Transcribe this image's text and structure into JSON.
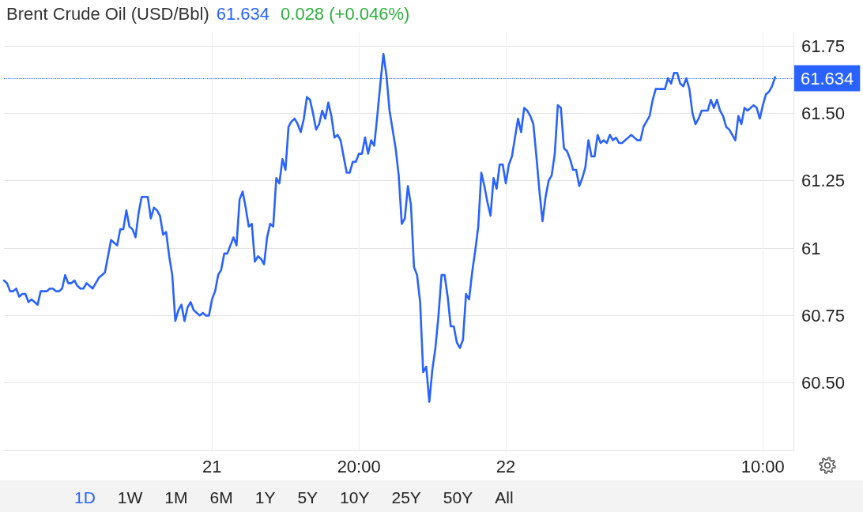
{
  "chart_data": {
    "type": "line",
    "title": "Brent Crude Oil (USD/Bbl)",
    "annotations": [
      "61.634",
      "0.028 (+0.046%)",
      "1D",
      "1W",
      "1M",
      "6M",
      "1Y",
      "5Y",
      "10Y",
      "25Y",
      "50Y",
      "All"
    ],
    "categories": [
      null,
      null,
      null,
      null,
      null,
      null,
      null,
      null,
      null,
      null,
      null,
      null,
      null,
      null,
      null,
      null,
      null,
      null,
      null,
      null,
      null,
      null,
      null,
      null,
      null,
      null,
      null,
      null,
      null,
      null,
      null,
      null,
      null,
      null,
      null,
      null,
      null,
      null,
      null,
      null,
      null,
      null,
      null,
      null,
      null,
      null,
      null,
      null,
      null,
      null,
      null,
      null,
      null,
      null,
      null,
      null,
      null,
      null,
      null,
      null,
      null,
      null,
      null,
      null,
      null,
      null,
      null,
      null,
      "21",
      null,
      null,
      null,
      null,
      null,
      null,
      null,
      null,
      null,
      null,
      null,
      null,
      null,
      null,
      null,
      null,
      null,
      null,
      null,
      null,
      null,
      null,
      null,
      null,
      null,
      null,
      null,
      null,
      null,
      null,
      null,
      null,
      null,
      null,
      null,
      null,
      null,
      null,
      null,
      null,
      null,
      null,
      null,
      null,
      null,
      null,
      null,
      "20:00",
      null,
      null,
      null,
      null,
      null,
      null,
      null,
      null,
      null,
      null,
      null,
      null,
      null,
      null,
      null,
      null,
      null,
      null,
      null,
      null,
      null,
      null,
      null,
      null,
      null,
      null,
      null,
      null,
      null,
      null,
      null,
      null,
      null,
      null,
      null,
      null,
      null,
      null,
      null,
      null,
      null,
      null,
      null,
      null,
      null,
      null,
      null,
      "22",
      null,
      null,
      null,
      null,
      null,
      null,
      null,
      null,
      null,
      null,
      null,
      null,
      null,
      null,
      null,
      null,
      null,
      null,
      null,
      null,
      null,
      null,
      null,
      null,
      null,
      null,
      null,
      null,
      null,
      null,
      null,
      null,
      null,
      null,
      null,
      null,
      null,
      null,
      null,
      null,
      null,
      null,
      null,
      null,
      null,
      null,
      null,
      null,
      null,
      null,
      null,
      null,
      null,
      null,
      null,
      null,
      null,
      null,
      null,
      null,
      null,
      null,
      null,
      null,
      null,
      null,
      null,
      null,
      null,
      null,
      null,
      null,
      null,
      null,
      null,
      null,
      null,
      null,
      null,
      null,
      null,
      null,
      null,
      "10:00",
      null,
      null,
      null,
      null,
      null,
      null,
      null,
      null,
      null,
      null
    ],
    "series": [
      {
        "color": "#2962ff",
        "values": [
          60.88,
          60.87,
          60.84,
          60.84,
          60.85,
          60.82,
          60.83,
          60.83,
          60.8,
          60.81,
          60.8,
          60.79,
          60.84,
          60.84,
          60.84,
          60.85,
          60.85,
          60.84,
          60.84,
          60.85,
          60.9,
          60.87,
          60.87,
          60.88,
          60.86,
          60.85,
          60.85,
          60.87,
          60.86,
          60.85,
          60.87,
          60.89,
          60.9,
          60.91,
          60.97,
          61.03,
          61.02,
          61.01,
          61.07,
          61.07,
          61.14,
          61.08,
          61.07,
          61.04,
          61.13,
          61.19,
          61.19,
          61.19,
          61.11,
          61.15,
          61.14,
          61.12,
          61.05,
          61.06,
          60.97,
          60.9,
          60.73,
          60.77,
          60.79,
          60.73,
          60.78,
          60.8,
          60.77,
          60.76,
          60.75,
          60.76,
          60.75,
          60.75,
          60.81,
          60.84,
          60.9,
          60.92,
          60.98,
          60.98,
          61.01,
          61.04,
          61.01,
          61.18,
          61.21,
          61.15,
          61.08,
          61.09,
          60.95,
          60.97,
          60.96,
          60.94,
          61.04,
          61.09,
          61.08,
          61.26,
          61.24,
          61.33,
          61.29,
          61.45,
          61.47,
          61.48,
          61.46,
          61.43,
          61.48,
          61.56,
          61.55,
          61.5,
          61.44,
          61.46,
          61.51,
          61.48,
          61.54,
          61.49,
          61.41,
          61.42,
          61.4,
          61.34,
          61.28,
          61.28,
          61.32,
          61.32,
          61.35,
          61.35,
          61.41,
          61.35,
          61.4,
          61.38,
          61.49,
          61.61,
          61.72,
          61.64,
          61.51,
          61.44,
          61.37,
          61.27,
          61.09,
          61.11,
          61.23,
          61.16,
          60.93,
          60.9,
          60.8,
          60.54,
          60.56,
          60.43,
          60.55,
          60.63,
          60.75,
          60.9,
          60.9,
          60.82,
          60.71,
          60.71,
          60.65,
          60.63,
          60.66,
          60.83,
          60.81,
          60.91,
          60.99,
          61.08,
          61.28,
          61.23,
          61.17,
          61.12,
          61.26,
          61.22,
          61.31,
          61.31,
          61.24,
          61.31,
          61.34,
          61.41,
          61.48,
          61.43,
          61.52,
          61.51,
          61.49,
          61.46,
          61.34,
          61.21,
          61.1,
          61.19,
          61.25,
          61.27,
          61.35,
          61.53,
          61.52,
          61.37,
          61.36,
          61.33,
          61.29,
          61.29,
          61.23,
          61.26,
          61.3,
          61.4,
          61.34,
          61.34,
          61.42,
          61.39,
          61.4,
          61.39,
          61.42,
          61.4,
          61.41,
          61.39,
          61.39,
          61.4,
          61.41,
          61.42,
          61.41,
          61.4,
          61.4,
          61.45,
          61.47,
          61.49,
          61.55,
          61.59,
          61.59,
          61.59,
          61.59,
          61.63,
          61.61,
          61.65,
          61.65,
          61.61,
          61.6,
          61.63,
          61.59,
          61.5,
          61.46,
          61.48,
          61.51,
          61.51,
          61.51,
          61.55,
          61.52,
          61.55,
          61.51,
          61.49,
          61.45,
          61.44,
          61.42,
          61.4,
          61.49,
          61.46,
          61.52,
          61.51,
          61.52,
          61.53,
          61.52,
          61.48,
          61.53,
          61.57,
          61.58,
          61.6,
          61.634,
          null,
          null,
          null,
          null,
          null,
          null
        ]
      }
    ],
    "ylim": [
      60.25,
      61.8
    ],
    "yticks": [
      {
        "value": 60.5,
        "label": "60.50"
      },
      60.75,
      61,
      61.25,
      {
        "value": 61.5,
        "label": "61.50"
      },
      61.75
    ],
    "ref_lines": [
      {
        "axis": "y",
        "value": 61.634,
        "label": "61.634",
        "color": "#2962ff",
        "line_style": "dotted"
      }
    ],
    "grid": true,
    "marker": "none"
  }
}
